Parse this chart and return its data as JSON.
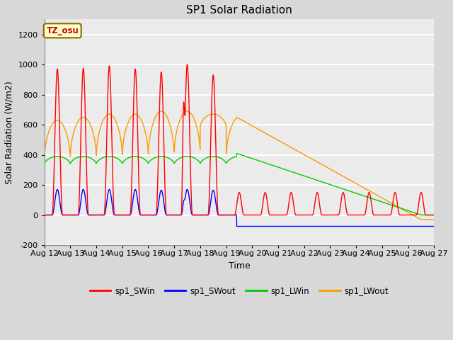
{
  "title": "SP1 Solar Radiation",
  "xlabel": "Time",
  "ylabel": "Solar Radiation (W/m2)",
  "ylim": [
    -200,
    1300
  ],
  "xlim_days": [
    0,
    15
  ],
  "x_tick_labels": [
    "Aug 12",
    "Aug 13",
    "Aug 14",
    "Aug 15",
    "Aug 16",
    "Aug 17",
    "Aug 18",
    "Aug 19",
    "Aug 20",
    "Aug 21",
    "Aug 22",
    "Aug 23",
    "Aug 24",
    "Aug 25",
    "Aug 26",
    "Aug 27"
  ],
  "y_ticks": [
    -200,
    0,
    200,
    400,
    600,
    800,
    1000,
    1200
  ],
  "legend_entries": [
    "sp1_SWin",
    "sp1_SWout",
    "sp1_LWin",
    "sp1_LWout"
  ],
  "legend_colors": [
    "#ff0000",
    "#0000ff",
    "#00cc00",
    "#ff9900"
  ],
  "tz_label": "TZ_osu",
  "bg_color": "#d8d8d8",
  "plot_bg_color": "#ebebeb",
  "grid_color": "#ffffff",
  "title_fontsize": 11,
  "axis_label_fontsize": 9,
  "tick_fontsize": 8
}
